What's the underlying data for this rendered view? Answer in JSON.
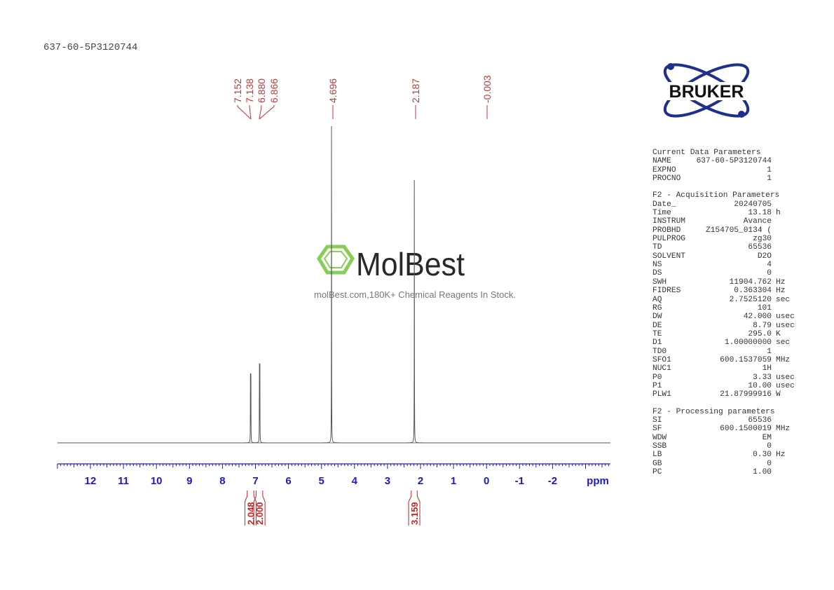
{
  "sample_title": "637-60-5P3120744",
  "logos": {
    "bruker": "BRUKER",
    "watermark_brand": "MolBest",
    "watermark_tagline": "molBest.com,180K+ Chemical Reagents In Stock."
  },
  "parameters": [
    {
      "heading": "Current Data Parameters",
      "rows": [
        [
          "NAME",
          "637-60-5P3120744",
          ""
        ],
        [
          "EXPNO",
          "1",
          ""
        ],
        [
          "PROCNO",
          "1",
          ""
        ]
      ]
    },
    {
      "heading": "F2 - Acquisition Parameters",
      "rows": [
        [
          "Date_",
          "20240705",
          ""
        ],
        [
          "Time",
          "13.18",
          "h"
        ],
        [
          "INSTRUM",
          "Avance",
          ""
        ],
        [
          "PROBHD",
          "Z154705_0134 (",
          ""
        ],
        [
          "PULPROG",
          "zg30",
          ""
        ],
        [
          "TD",
          "65536",
          ""
        ],
        [
          "SOLVENT",
          "D2O",
          ""
        ],
        [
          "NS",
          "4",
          ""
        ],
        [
          "DS",
          "0",
          ""
        ],
        [
          "SWH",
          "11904.762",
          "Hz"
        ],
        [
          "FIDRES",
          "0.363304",
          "Hz"
        ],
        [
          "AQ",
          "2.7525120",
          "sec"
        ],
        [
          "RG",
          "101",
          ""
        ],
        [
          "DW",
          "42.000",
          "usec"
        ],
        [
          "DE",
          "8.79",
          "usec"
        ],
        [
          "TE",
          "295.0",
          "K"
        ],
        [
          "D1",
          "1.00000000",
          "sec"
        ],
        [
          "TD0",
          "1",
          ""
        ],
        [
          "SFO1",
          "600.1537059",
          "MHz"
        ],
        [
          "NUC1",
          "1H",
          ""
        ],
        [
          "P0",
          "3.33",
          "usec"
        ],
        [
          "P1",
          "10.00",
          "usec"
        ],
        [
          "PLW1",
          "21.87999916",
          "W"
        ]
      ]
    },
    {
      "heading": "F2 - Processing parameters",
      "rows": [
        [
          "SI",
          "65536",
          ""
        ],
        [
          "SF",
          "600.1500019",
          "MHz"
        ],
        [
          "WDW",
          "EM",
          ""
        ],
        [
          "SSB",
          "0",
          ""
        ],
        [
          "LB",
          "0.30",
          "Hz"
        ],
        [
          "GB",
          "0",
          ""
        ],
        [
          "PC",
          "1.00",
          ""
        ]
      ]
    }
  ],
  "chart_data": {
    "type": "line",
    "xlabel": "ppm",
    "xlim": [
      13.0,
      -3.75
    ],
    "x_reversed": true,
    "x_ticks": [
      "12",
      "11",
      "10",
      "9",
      "8",
      "7",
      "6",
      "5",
      "4",
      "3",
      "2",
      "1",
      "0",
      "-1",
      "-2"
    ],
    "peaks": [
      {
        "ppm": 7.152,
        "label": "7.152",
        "relative_intensity": 0.21
      },
      {
        "ppm": 7.138,
        "label": "7.138",
        "relative_intensity": 0.21
      },
      {
        "ppm": 6.88,
        "label": "6.880",
        "relative_intensity": 0.24
      },
      {
        "ppm": 6.866,
        "label": "6.866",
        "relative_intensity": 0.24
      },
      {
        "ppm": 4.696,
        "label": "4.696",
        "relative_intensity": 1.0
      },
      {
        "ppm": 2.187,
        "label": "2.187",
        "relative_intensity": 0.83
      },
      {
        "ppm": -0.003,
        "label": "-0.003",
        "relative_intensity": 0.0
      }
    ],
    "integrals": [
      {
        "from": 7.25,
        "to": 7.05,
        "value": "2.048"
      },
      {
        "from": 6.98,
        "to": 6.78,
        "value": "2.000"
      },
      {
        "from": 2.28,
        "to": 2.1,
        "value": "3.159"
      }
    ],
    "colors": {
      "spectrum": "#555555",
      "axis": "#1a1acc",
      "peak_labels": "#cc3333",
      "integrals": "#cc2222",
      "bruker": "#1e2f8c",
      "watermark": "#7ac943"
    }
  }
}
